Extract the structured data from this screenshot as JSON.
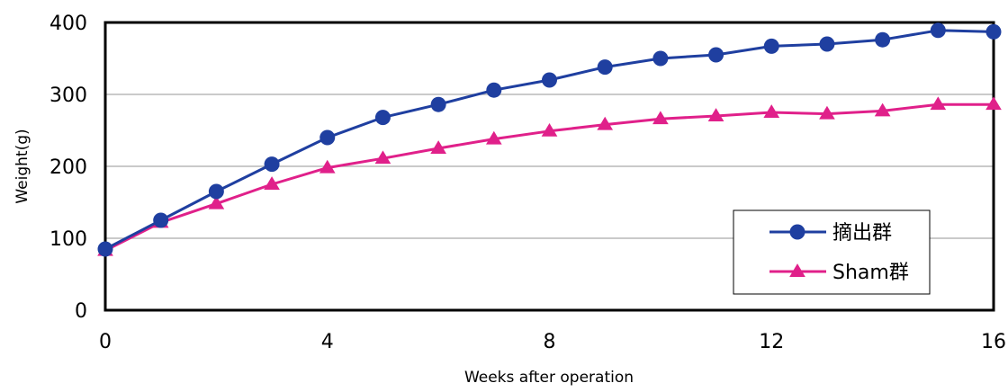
{
  "chart_data": {
    "type": "line",
    "title": "",
    "xlabel": "Weeks after operation",
    "ylabel": "Weight(g)",
    "xlim": [
      0,
      16
    ],
    "ylim": [
      0,
      400
    ],
    "x_ticks": [
      0,
      4,
      8,
      12,
      16
    ],
    "y_ticks": [
      0,
      100,
      200,
      300,
      400
    ],
    "grid": "horizontal",
    "legend_position": "bottom-right",
    "x": [
      0,
      1,
      2,
      3,
      4,
      5,
      6,
      7,
      8,
      9,
      10,
      11,
      12,
      13,
      14,
      15,
      16
    ],
    "series": [
      {
        "name": "摘出群",
        "color": "#1f3fa0",
        "marker": "circle",
        "values": [
          85,
          125,
          165,
          203,
          240,
          268,
          286,
          306,
          320,
          338,
          350,
          355,
          367,
          370,
          376,
          389,
          387
        ]
      },
      {
        "name": "Sham群",
        "color": "#e0208a",
        "marker": "triangle",
        "values": [
          83,
          122,
          148,
          175,
          198,
          211,
          225,
          238,
          249,
          258,
          266,
          270,
          275,
          273,
          277,
          286,
          286
        ]
      }
    ]
  }
}
